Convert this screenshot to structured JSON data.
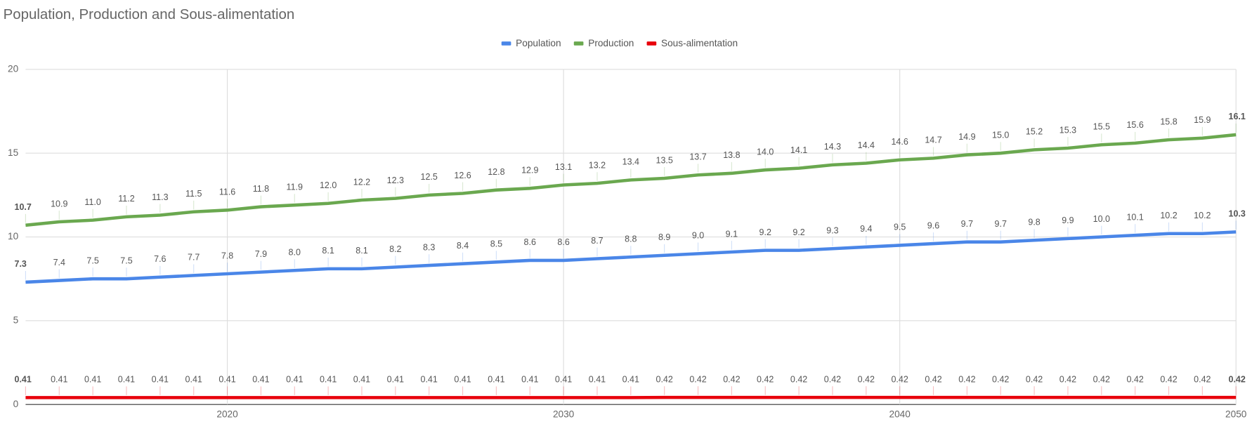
{
  "chart_data": {
    "type": "line",
    "title": "Population, Production and Sous-alimentation",
    "x": [
      2014,
      2015,
      2016,
      2017,
      2018,
      2019,
      2020,
      2021,
      2022,
      2023,
      2024,
      2025,
      2026,
      2027,
      2028,
      2029,
      2030,
      2031,
      2032,
      2033,
      2034,
      2035,
      2036,
      2037,
      2038,
      2039,
      2040,
      2041,
      2042,
      2043,
      2044,
      2045,
      2046,
      2047,
      2048,
      2049,
      2050
    ],
    "xlim": [
      2014,
      2050
    ],
    "xticks": [
      2020,
      2030,
      2040,
      2050
    ],
    "ylim": [
      0,
      20
    ],
    "yticks": [
      0,
      5,
      10,
      15,
      20
    ],
    "grid": true,
    "legend": "top",
    "series": [
      {
        "name": "Population",
        "color": "#4a86e8",
        "values": [
          7.3,
          7.4,
          7.5,
          7.5,
          7.6,
          7.7,
          7.8,
          7.9,
          8.0,
          8.1,
          8.1,
          8.2,
          8.3,
          8.4,
          8.5,
          8.6,
          8.6,
          8.7,
          8.8,
          8.9,
          9.0,
          9.1,
          9.2,
          9.2,
          9.3,
          9.4,
          9.5,
          9.6,
          9.7,
          9.7,
          9.8,
          9.9,
          10.0,
          10.1,
          10.2,
          10.2,
          10.3
        ],
        "value_labels": [
          "7.3",
          "7.4",
          "7.5",
          "7.5",
          "7.6",
          "7.7",
          "7.8",
          "7.9",
          "8.0",
          "8.1",
          "8.1",
          "8.2",
          "8.3",
          "8.4",
          "8.5",
          "8.6",
          "8.6",
          "8.7",
          "8.8",
          "8.9",
          "9.0",
          "9.1",
          "9.2",
          "9.2",
          "9.3",
          "9.4",
          "9.5",
          "9.6",
          "9.7",
          "9.7",
          "9.8",
          "9.9",
          "10.0",
          "10.1",
          "10.2",
          "10.2",
          "10.3"
        ]
      },
      {
        "name": "Production",
        "color": "#6aa84f",
        "values": [
          10.7,
          10.9,
          11.0,
          11.2,
          11.3,
          11.5,
          11.6,
          11.8,
          11.9,
          12.0,
          12.2,
          12.3,
          12.5,
          12.6,
          12.8,
          12.9,
          13.1,
          13.2,
          13.4,
          13.5,
          13.7,
          13.8,
          14.0,
          14.1,
          14.3,
          14.4,
          14.6,
          14.7,
          14.9,
          15.0,
          15.2,
          15.3,
          15.5,
          15.6,
          15.8,
          15.9,
          16.1
        ],
        "value_labels": [
          "10.7",
          "10.9",
          "11.0",
          "11.2",
          "11.3",
          "11.5",
          "11.6",
          "11.8",
          "11.9",
          "12.0",
          "12.2",
          "12.3",
          "12.5",
          "12.6",
          "12.8",
          "12.9",
          "13.1",
          "13.2",
          "13.4",
          "13.5",
          "13.7",
          "13.8",
          "14.0",
          "14.1",
          "14.3",
          "14.4",
          "14.6",
          "14.7",
          "14.9",
          "15.0",
          "15.2",
          "15.3",
          "15.5",
          "15.6",
          "15.8",
          "15.9",
          "16.1"
        ]
      },
      {
        "name": "Sous-alimentation",
        "color": "#e8000b",
        "values": [
          0.41,
          0.41,
          0.41,
          0.41,
          0.41,
          0.41,
          0.41,
          0.41,
          0.41,
          0.41,
          0.41,
          0.41,
          0.41,
          0.41,
          0.41,
          0.41,
          0.41,
          0.41,
          0.41,
          0.42,
          0.42,
          0.42,
          0.42,
          0.42,
          0.42,
          0.42,
          0.42,
          0.42,
          0.42,
          0.42,
          0.42,
          0.42,
          0.42,
          0.42,
          0.42,
          0.42,
          0.42
        ]
      }
    ]
  }
}
